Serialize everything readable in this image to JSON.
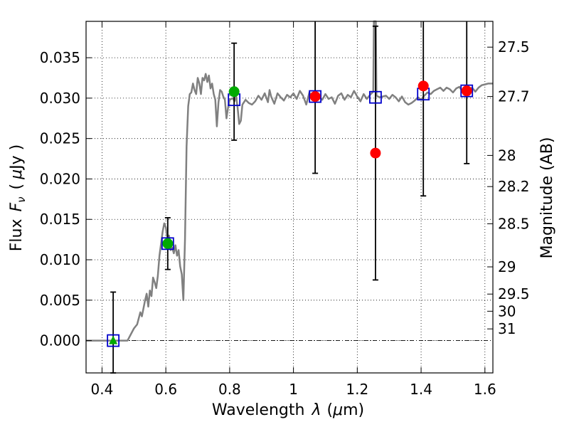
{
  "chart_data": {
    "type": "scatter",
    "xlabel_parts": [
      "Wavelength",
      "λ",
      "(",
      "μ",
      "m)"
    ],
    "ylabel_parts": [
      "Flux",
      "F",
      "ν",
      "(",
      "μ",
      "Jy )"
    ],
    "y2label": "Magnitude (AB)",
    "xlim": [
      0.35,
      1.625
    ],
    "ylim": [
      -0.004,
      0.0395
    ],
    "grid": true,
    "xticks": [
      {
        "v": 0.4,
        "l": "0.4"
      },
      {
        "v": 0.6,
        "l": "0.6"
      },
      {
        "v": 0.8,
        "l": "0.8"
      },
      {
        "v": 1.0,
        "l": "1"
      },
      {
        "v": 1.2,
        "l": "1.2"
      },
      {
        "v": 1.4,
        "l": "1.4"
      },
      {
        "v": 1.6,
        "l": "1.6"
      }
    ],
    "yticks": [
      {
        "v": 0.0,
        "l": "0.000"
      },
      {
        "v": 0.005,
        "l": "0.005"
      },
      {
        "v": 0.01,
        "l": "0.010"
      },
      {
        "v": 0.015,
        "l": "0.015"
      },
      {
        "v": 0.02,
        "l": "0.020"
      },
      {
        "v": 0.025,
        "l": "0.025"
      },
      {
        "v": 0.03,
        "l": "0.030"
      },
      {
        "v": 0.035,
        "l": "0.035"
      }
    ],
    "magticks": [
      {
        "mag": 27.5,
        "l": "27.5"
      },
      {
        "mag": 27.7,
        "l": "27.7"
      },
      {
        "mag": 28,
        "l": "28"
      },
      {
        "mag": 28.2,
        "l": "28.2"
      },
      {
        "mag": 28.5,
        "l": "28.5"
      },
      {
        "mag": 29,
        "l": "29"
      },
      {
        "mag": 29.5,
        "l": "29.5"
      },
      {
        "mag": 30,
        "l": "30"
      },
      {
        "mag": 31,
        "l": "31"
      }
    ],
    "model_color": "#808080",
    "model_sed": [
      [
        0.35,
        0.0
      ],
      [
        0.48,
        0.0
      ],
      [
        0.5,
        0.0015
      ],
      [
        0.51,
        0.002
      ],
      [
        0.52,
        0.0035
      ],
      [
        0.525,
        0.003
      ],
      [
        0.535,
        0.005
      ],
      [
        0.54,
        0.0058
      ],
      [
        0.545,
        0.0042
      ],
      [
        0.55,
        0.0062
      ],
      [
        0.555,
        0.0055
      ],
      [
        0.56,
        0.0078
      ],
      [
        0.565,
        0.0072
      ],
      [
        0.57,
        0.0065
      ],
      [
        0.575,
        0.008
      ],
      [
        0.58,
        0.0105
      ],
      [
        0.59,
        0.0135
      ],
      [
        0.595,
        0.0145
      ],
      [
        0.6,
        0.014
      ],
      [
        0.605,
        0.0125
      ],
      [
        0.61,
        0.013
      ],
      [
        0.615,
        0.0112
      ],
      [
        0.62,
        0.0115
      ],
      [
        0.625,
        0.0108
      ],
      [
        0.63,
        0.0118
      ],
      [
        0.635,
        0.0105
      ],
      [
        0.64,
        0.0112
      ],
      [
        0.645,
        0.0092
      ],
      [
        0.65,
        0.0082
      ],
      [
        0.655,
        0.005
      ],
      [
        0.66,
        0.0125
      ],
      [
        0.665,
        0.024
      ],
      [
        0.67,
        0.029
      ],
      [
        0.675,
        0.0305
      ],
      [
        0.68,
        0.0307
      ],
      [
        0.685,
        0.0318
      ],
      [
        0.69,
        0.031
      ],
      [
        0.695,
        0.0305
      ],
      [
        0.7,
        0.0325
      ],
      [
        0.705,
        0.0318
      ],
      [
        0.71,
        0.0305
      ],
      [
        0.715,
        0.0325
      ],
      [
        0.72,
        0.0322
      ],
      [
        0.725,
        0.033
      ],
      [
        0.73,
        0.032
      ],
      [
        0.735,
        0.0328
      ],
      [
        0.74,
        0.0312
      ],
      [
        0.745,
        0.0318
      ],
      [
        0.75,
        0.0305
      ],
      [
        0.755,
        0.0298
      ],
      [
        0.76,
        0.0265
      ],
      [
        0.765,
        0.0295
      ],
      [
        0.77,
        0.031
      ],
      [
        0.775,
        0.0308
      ],
      [
        0.78,
        0.0302
      ],
      [
        0.785,
        0.0298
      ],
      [
        0.79,
        0.0275
      ],
      [
        0.795,
        0.0288
      ],
      [
        0.8,
        0.0298
      ],
      [
        0.81,
        0.03
      ],
      [
        0.815,
        0.0296
      ],
      [
        0.82,
        0.0303
      ],
      [
        0.825,
        0.0288
      ],
      [
        0.83,
        0.0268
      ],
      [
        0.835,
        0.0272
      ],
      [
        0.84,
        0.0292
      ],
      [
        0.85,
        0.0298
      ],
      [
        0.86,
        0.0294
      ],
      [
        0.87,
        0.0292
      ],
      [
        0.88,
        0.0296
      ],
      [
        0.89,
        0.0303
      ],
      [
        0.9,
        0.0298
      ],
      [
        0.91,
        0.0306
      ],
      [
        0.92,
        0.0295
      ],
      [
        0.925,
        0.031
      ],
      [
        0.93,
        0.0302
      ],
      [
        0.94,
        0.0293
      ],
      [
        0.95,
        0.0306
      ],
      [
        0.96,
        0.0301
      ],
      [
        0.97,
        0.0297
      ],
      [
        0.98,
        0.0304
      ],
      [
        0.99,
        0.0301
      ],
      [
        1.0,
        0.0306
      ],
      [
        1.01,
        0.0299
      ],
      [
        1.02,
        0.0309
      ],
      [
        1.03,
        0.0303
      ],
      [
        1.04,
        0.0292
      ],
      [
        1.05,
        0.0307
      ],
      [
        1.06,
        0.0301
      ],
      [
        1.07,
        0.0296
      ],
      [
        1.08,
        0.0302
      ],
      [
        1.09,
        0.0298
      ],
      [
        1.1,
        0.0305
      ],
      [
        1.11,
        0.0299
      ],
      [
        1.12,
        0.0301
      ],
      [
        1.13,
        0.0293
      ],
      [
        1.14,
        0.0303
      ],
      [
        1.15,
        0.0306
      ],
      [
        1.16,
        0.0298
      ],
      [
        1.17,
        0.0304
      ],
      [
        1.18,
        0.0301
      ],
      [
        1.19,
        0.0309
      ],
      [
        1.2,
        0.0302
      ],
      [
        1.21,
        0.0296
      ],
      [
        1.22,
        0.0305
      ],
      [
        1.23,
        0.0299
      ],
      [
        1.24,
        0.0304
      ],
      [
        1.25,
        0.0308
      ],
      [
        1.252,
        0.0395
      ],
      [
        1.258,
        0.0395
      ],
      [
        1.26,
        0.0303
      ],
      [
        1.27,
        0.0301
      ],
      [
        1.28,
        0.0302
      ],
      [
        1.29,
        0.0303
      ],
      [
        1.3,
        0.0299
      ],
      [
        1.31,
        0.0304
      ],
      [
        1.32,
        0.0301
      ],
      [
        1.33,
        0.0296
      ],
      [
        1.34,
        0.0302
      ],
      [
        1.35,
        0.0295
      ],
      [
        1.36,
        0.0292
      ],
      [
        1.37,
        0.0294
      ],
      [
        1.38,
        0.0297
      ],
      [
        1.39,
        0.0301
      ],
      [
        1.4,
        0.0298
      ],
      [
        1.41,
        0.0303
      ],
      [
        1.42,
        0.0307
      ],
      [
        1.43,
        0.0305
      ],
      [
        1.44,
        0.0309
      ],
      [
        1.45,
        0.0311
      ],
      [
        1.46,
        0.0313
      ],
      [
        1.47,
        0.0309
      ],
      [
        1.48,
        0.0313
      ],
      [
        1.49,
        0.0311
      ],
      [
        1.5,
        0.0307
      ],
      [
        1.51,
        0.0312
      ],
      [
        1.52,
        0.0314
      ],
      [
        1.53,
        0.0308
      ],
      [
        1.54,
        0.0306
      ],
      [
        1.55,
        0.0311
      ],
      [
        1.56,
        0.0313
      ],
      [
        1.57,
        0.0308
      ],
      [
        1.58,
        0.0313
      ],
      [
        1.59,
        0.0316
      ],
      [
        1.6,
        0.0317
      ],
      [
        1.61,
        0.0318
      ],
      [
        1.625,
        0.0318
      ]
    ],
    "model_band_points": {
      "color": "#0000cc",
      "points": [
        {
          "x": 0.435,
          "y": 0.0
        },
        {
          "x": 0.606,
          "y": 0.012
        },
        {
          "x": 0.814,
          "y": 0.0298
        },
        {
          "x": 1.068,
          "y": 0.0302
        },
        {
          "x": 1.257,
          "y": 0.0301
        },
        {
          "x": 1.407,
          "y": 0.0305
        },
        {
          "x": 1.543,
          "y": 0.0309
        }
      ]
    },
    "observations": [
      {
        "x": 0.435,
        "y": 0.0,
        "err": 0.006,
        "marker": "triangle",
        "color": "#00aa00"
      },
      {
        "x": 0.606,
        "y": 0.012,
        "err": 0.0032,
        "marker": "circle",
        "color": "#00aa00"
      },
      {
        "x": 0.814,
        "y": 0.0308,
        "err": 0.006,
        "marker": "circle",
        "color": "#00aa00"
      },
      {
        "x": 1.068,
        "y": 0.0302,
        "err": 0.0095,
        "marker": "circle",
        "color": "#ff0000"
      },
      {
        "x": 1.257,
        "y": 0.0232,
        "err": 0.0157,
        "marker": "circle",
        "color": "#ff0000"
      },
      {
        "x": 1.407,
        "y": 0.0315,
        "err": 0.0136,
        "marker": "circle",
        "color": "#ff0000"
      },
      {
        "x": 1.543,
        "y": 0.0309,
        "err": 0.009,
        "marker": "circle",
        "color": "#ff0000"
      }
    ]
  }
}
